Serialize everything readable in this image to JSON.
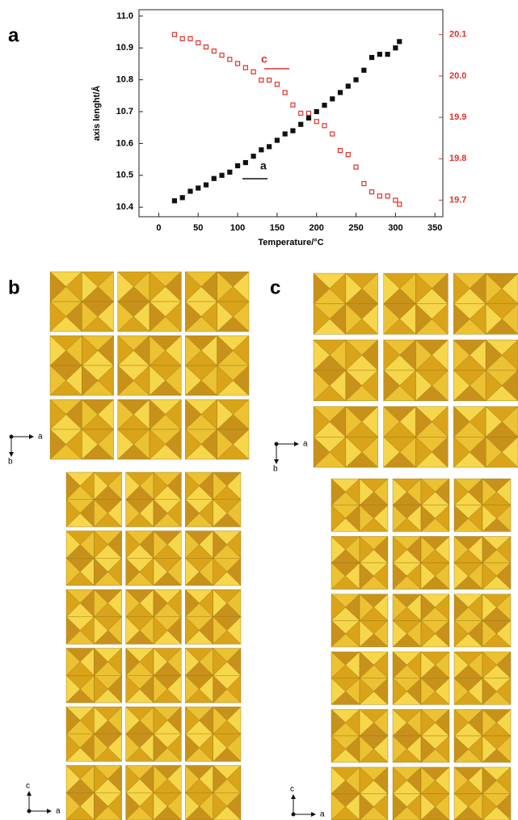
{
  "chart_data": {
    "type": "scatter",
    "xlabel": "Temperature/°C",
    "ylabel": "axis lenght/Å",
    "x": [
      20,
      30,
      40,
      50,
      60,
      70,
      80,
      90,
      100,
      110,
      120,
      130,
      140,
      150,
      160,
      170,
      180,
      190,
      200,
      210,
      220,
      230,
      240,
      250,
      260,
      270,
      280,
      290,
      300,
      305
    ],
    "series": [
      {
        "name": "a",
        "color": "#111111",
        "values": [
          10.42,
          10.43,
          10.45,
          10.46,
          10.47,
          10.49,
          10.5,
          10.51,
          10.53,
          10.54,
          10.56,
          10.58,
          10.59,
          10.61,
          10.63,
          10.64,
          10.66,
          10.68,
          10.7,
          10.72,
          10.74,
          10.76,
          10.78,
          10.8,
          10.83,
          10.87,
          10.88,
          10.88,
          10.9,
          10.92
        ]
      },
      {
        "name": "c",
        "color": "#e0302a",
        "axis": "y2",
        "values": [
          20.1,
          20.09,
          20.09,
          20.08,
          20.07,
          20.06,
          20.05,
          20.04,
          20.03,
          20.02,
          20.01,
          19.99,
          19.99,
          19.98,
          19.96,
          19.93,
          19.91,
          19.91,
          19.89,
          19.88,
          19.86,
          19.82,
          19.81,
          19.78,
          19.74,
          19.72,
          19.71,
          19.71,
          19.7,
          19.69
        ]
      }
    ],
    "xlim": [
      -25,
      360
    ],
    "xticks": [
      0,
      50,
      100,
      150,
      200,
      250,
      300,
      350
    ],
    "ylim": [
      10.37,
      11.02
    ],
    "yticks": [
      10.4,
      10.5,
      10.6,
      10.7,
      10.8,
      10.9,
      {
        "value": 11,
        "label": "11.0"
      }
    ],
    "y2lim": [
      19.66,
      20.16
    ],
    "y2ticks": [
      19.7,
      19.8,
      19.9,
      {
        "value": 20,
        "label": "20.0"
      },
      20.1
    ],
    "grid": false
  },
  "panel_labels": [
    "a",
    "b",
    "c"
  ],
  "structure_views": [
    {
      "horizontal": "a",
      "vertical": "b"
    },
    {
      "horizontal": "a",
      "vertical": "b"
    },
    {
      "horizontal": "a",
      "vertical": "c"
    },
    {
      "horizontal": "a",
      "vertical": "c"
    }
  ]
}
